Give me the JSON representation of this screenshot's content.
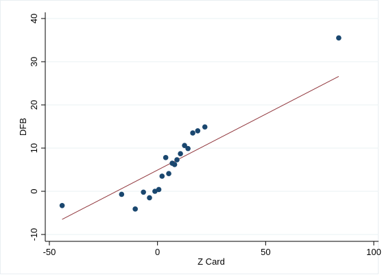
{
  "chart_data": {
    "type": "scatter",
    "title": "",
    "xlabel": "Z Card",
    "ylabel": "DFB",
    "xlim": [
      -50,
      100
    ],
    "ylim": [
      -10,
      40
    ],
    "x_ticks": [
      -50,
      0,
      50,
      100
    ],
    "y_ticks": [
      -10,
      0,
      10,
      20,
      30,
      40
    ],
    "grid": "horizontal",
    "legend": "none",
    "series": [
      {
        "type": "scatter",
        "color": "#1a476f",
        "points": [
          {
            "x": -44.1,
            "y": -3.3
          },
          {
            "x": -16.6,
            "y": -0.7
          },
          {
            "x": -10.3,
            "y": -4.1
          },
          {
            "x": -6.5,
            "y": -0.2
          },
          {
            "x": -3.7,
            "y": -1.5
          },
          {
            "x": -1.2,
            "y": 0.0
          },
          {
            "x": 0.6,
            "y": 0.4
          },
          {
            "x": 2.1,
            "y": 3.5
          },
          {
            "x": 3.8,
            "y": 7.8
          },
          {
            "x": 5.2,
            "y": 4.1
          },
          {
            "x": 6.8,
            "y": 6.5
          },
          {
            "x": 7.9,
            "y": 6.2
          },
          {
            "x": 9.0,
            "y": 7.3
          },
          {
            "x": 10.6,
            "y": 8.7
          },
          {
            "x": 12.5,
            "y": 10.6
          },
          {
            "x": 14.1,
            "y": 9.9
          },
          {
            "x": 16.3,
            "y": 13.5
          },
          {
            "x": 18.6,
            "y": 14.0
          },
          {
            "x": 21.9,
            "y": 14.9
          },
          {
            "x": 83.8,
            "y": 35.5
          }
        ]
      },
      {
        "type": "line",
        "color": "#90353b",
        "points": [
          {
            "x": -44.1,
            "y": -6.5
          },
          {
            "x": 83.8,
            "y": 26.6
          }
        ]
      }
    ]
  }
}
